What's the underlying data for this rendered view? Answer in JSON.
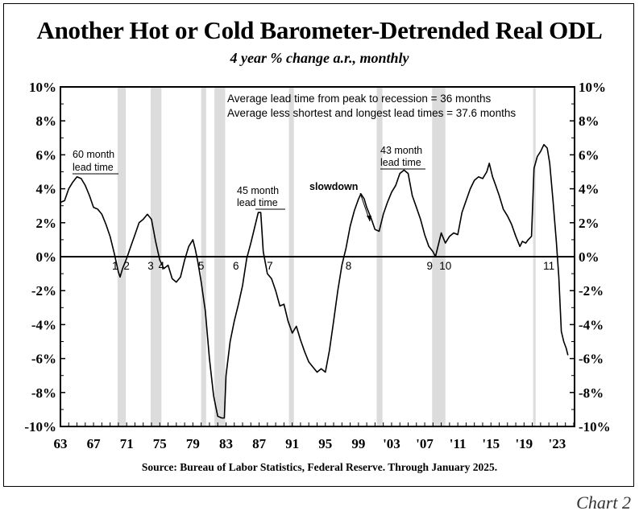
{
  "header": {
    "title": "Another Hot or Cold Barometer-Detrended Real ODL",
    "subtitle": "4 year % change a.r., monthly"
  },
  "footer": {
    "source": "Source: Bureau of Labor Statistics, Federal Reserve. Through January 2025.",
    "chart_label": "Chart 2"
  },
  "chart_data": {
    "type": "line",
    "title": "Another Hot or Cold Barometer-Detrended Real ODL",
    "subtitle": "4 year % change a.r., monthly",
    "xlim": [
      1963,
      2025.1
    ],
    "ylim": [
      -10,
      10
    ],
    "grid": false,
    "x_tick_values": [
      1963,
      1967,
      1971,
      1975,
      1979,
      1983,
      1987,
      1991,
      1995,
      1999,
      2003,
      2007,
      2011,
      2015,
      2019,
      2023
    ],
    "x_tick_labels": [
      "63",
      "67",
      "71",
      "75",
      "79",
      "83",
      "87",
      "91",
      "95",
      "99",
      "'03",
      "'07",
      "'11",
      "'15",
      "'19",
      "'23"
    ],
    "y_tick_values": [
      10,
      8,
      6,
      4,
      2,
      0,
      -2,
      -4,
      -6,
      -8,
      -10
    ],
    "y_tick_labels": [
      "10%",
      "8%",
      "6%",
      "4%",
      "2%",
      "0%",
      "-2%",
      "-4%",
      "-6%",
      "-8%",
      "-10%"
    ],
    "recessions": [
      {
        "start": 1969.9,
        "end": 1970.9
      },
      {
        "start": 1973.9,
        "end": 1975.2
      },
      {
        "start": 1980.0,
        "end": 1980.6
      },
      {
        "start": 1981.6,
        "end": 1982.9
      },
      {
        "start": 1990.6,
        "end": 1991.2
      },
      {
        "start": 2001.2,
        "end": 2001.9
      },
      {
        "start": 2007.9,
        "end": 2009.5
      },
      {
        "start": 2020.1,
        "end": 2020.4
      }
    ],
    "series": [
      {
        "color": "#000000",
        "points": [
          [
            1963.0,
            3.2
          ],
          [
            1963.5,
            3.3
          ],
          [
            1964.0,
            4.0
          ],
          [
            1964.5,
            4.4
          ],
          [
            1965.0,
            4.7
          ],
          [
            1965.5,
            4.6
          ],
          [
            1966.0,
            4.2
          ],
          [
            1966.5,
            3.6
          ],
          [
            1967.0,
            2.9
          ],
          [
            1967.5,
            2.8
          ],
          [
            1968.0,
            2.5
          ],
          [
            1968.5,
            1.9
          ],
          [
            1969.0,
            1.2
          ],
          [
            1969.5,
            0.2
          ],
          [
            1970.0,
            -0.9
          ],
          [
            1970.2,
            -1.2
          ],
          [
            1970.5,
            -0.7
          ],
          [
            1971.0,
            -0.1
          ],
          [
            1971.5,
            0.6
          ],
          [
            1972.0,
            1.3
          ],
          [
            1972.5,
            2.0
          ],
          [
            1973.0,
            2.2
          ],
          [
            1973.5,
            2.5
          ],
          [
            1974.0,
            2.2
          ],
          [
            1974.5,
            0.9
          ],
          [
            1975.0,
            -0.2
          ],
          [
            1975.5,
            -0.7
          ],
          [
            1976.0,
            -0.5
          ],
          [
            1976.5,
            -1.3
          ],
          [
            1977.0,
            -1.5
          ],
          [
            1977.5,
            -1.2
          ],
          [
            1978.0,
            -0.2
          ],
          [
            1978.5,
            0.6
          ],
          [
            1979.0,
            1.0
          ],
          [
            1979.3,
            0.4
          ],
          [
            1979.6,
            -0.3
          ],
          [
            1980.0,
            -1.5
          ],
          [
            1980.5,
            -3.2
          ],
          [
            1981.0,
            -6.0
          ],
          [
            1981.5,
            -8.2
          ],
          [
            1982.0,
            -9.4
          ],
          [
            1982.5,
            -9.5
          ],
          [
            1982.8,
            -9.5
          ],
          [
            1983.0,
            -7.0
          ],
          [
            1983.5,
            -5.0
          ],
          [
            1984.0,
            -3.8
          ],
          [
            1984.5,
            -2.8
          ],
          [
            1985.0,
            -1.7
          ],
          [
            1985.5,
            -0.1
          ],
          [
            1986.0,
            0.8
          ],
          [
            1986.5,
            1.8
          ],
          [
            1986.9,
            2.6
          ],
          [
            1987.2,
            2.6
          ],
          [
            1987.5,
            0.3
          ],
          [
            1988.0,
            -1.0
          ],
          [
            1988.5,
            -1.3
          ],
          [
            1989.0,
            -2.0
          ],
          [
            1989.5,
            -2.9
          ],
          [
            1990.0,
            -2.8
          ],
          [
            1990.5,
            -3.8
          ],
          [
            1991.0,
            -4.5
          ],
          [
            1991.5,
            -4.1
          ],
          [
            1992.0,
            -4.9
          ],
          [
            1992.5,
            -5.6
          ],
          [
            1993.0,
            -6.2
          ],
          [
            1993.5,
            -6.5
          ],
          [
            1994.0,
            -6.8
          ],
          [
            1994.5,
            -6.6
          ],
          [
            1995.0,
            -6.8
          ],
          [
            1995.5,
            -5.5
          ],
          [
            1996.0,
            -3.8
          ],
          [
            1996.5,
            -2.0
          ],
          [
            1997.0,
            -0.5
          ],
          [
            1997.5,
            0.5
          ],
          [
            1998.0,
            1.8
          ],
          [
            1998.5,
            2.7
          ],
          [
            1999.0,
            3.4
          ],
          [
            1999.3,
            3.7
          ],
          [
            1999.7,
            3.4
          ],
          [
            2000.0,
            2.9
          ],
          [
            2000.5,
            2.3
          ],
          [
            2001.0,
            1.6
          ],
          [
            2001.5,
            1.5
          ],
          [
            2002.0,
            2.5
          ],
          [
            2002.5,
            3.2
          ],
          [
            2003.0,
            3.8
          ],
          [
            2003.5,
            4.2
          ],
          [
            2004.0,
            4.9
          ],
          [
            2004.5,
            5.1
          ],
          [
            2005.0,
            4.9
          ],
          [
            2005.5,
            3.6
          ],
          [
            2006.0,
            2.9
          ],
          [
            2006.5,
            2.2
          ],
          [
            2007.0,
            1.3
          ],
          [
            2007.5,
            0.6
          ],
          [
            2008.0,
            0.3
          ],
          [
            2008.3,
            0.0
          ],
          [
            2008.6,
            0.6
          ],
          [
            2009.0,
            1.4
          ],
          [
            2009.5,
            0.8
          ],
          [
            2010.0,
            1.2
          ],
          [
            2010.5,
            1.4
          ],
          [
            2011.0,
            1.3
          ],
          [
            2011.5,
            2.6
          ],
          [
            2012.0,
            3.3
          ],
          [
            2012.5,
            4.0
          ],
          [
            2013.0,
            4.5
          ],
          [
            2013.5,
            4.7
          ],
          [
            2014.0,
            4.6
          ],
          [
            2014.5,
            5.0
          ],
          [
            2014.8,
            5.5
          ],
          [
            2015.2,
            4.7
          ],
          [
            2015.5,
            4.3
          ],
          [
            2016.0,
            3.6
          ],
          [
            2016.5,
            2.8
          ],
          [
            2017.0,
            2.4
          ],
          [
            2017.5,
            1.9
          ],
          [
            2018.0,
            1.2
          ],
          [
            2018.5,
            0.6
          ],
          [
            2018.8,
            0.9
          ],
          [
            2019.2,
            0.8
          ],
          [
            2019.5,
            1.0
          ],
          [
            2019.9,
            1.2
          ],
          [
            2020.2,
            5.2
          ],
          [
            2020.6,
            5.9
          ],
          [
            2021.0,
            6.2
          ],
          [
            2021.4,
            6.6
          ],
          [
            2021.8,
            6.4
          ],
          [
            2022.1,
            5.5
          ],
          [
            2022.5,
            3.3
          ],
          [
            2022.9,
            0.9
          ],
          [
            2023.2,
            -1.2
          ],
          [
            2023.5,
            -4.4
          ],
          [
            2023.8,
            -5.0
          ],
          [
            2024.1,
            -5.4
          ],
          [
            2024.3,
            -5.8
          ]
        ]
      }
    ],
    "annotations": {
      "avg_line1": "Average lead time from peak to recession = 36 months",
      "avg_line2": "Average less shortest and longest lead times = 37.6 months",
      "lead60_line1": "60 month",
      "lead60_line2": "lead time",
      "lead45_line1": "45 month",
      "lead45_line2": "lead time",
      "lead43_line1": "43 month",
      "lead43_line2": "lead time",
      "slowdown": "slowdown",
      "recession_numbers": [
        {
          "label": "1",
          "x": 1969.6
        },
        {
          "label": "2",
          "x": 1971.0
        },
        {
          "label": "3",
          "x": 1973.9
        },
        {
          "label": "4",
          "x": 1975.2
        },
        {
          "label": "5",
          "x": 1980.0
        },
        {
          "label": "6",
          "x": 1984.2
        },
        {
          "label": "7",
          "x": 1988.3
        },
        {
          "label": "8",
          "x": 1997.8
        },
        {
          "label": "9",
          "x": 2007.6
        },
        {
          "label": "10",
          "x": 2009.5
        },
        {
          "label": "11",
          "x": 2022.0
        }
      ]
    }
  }
}
